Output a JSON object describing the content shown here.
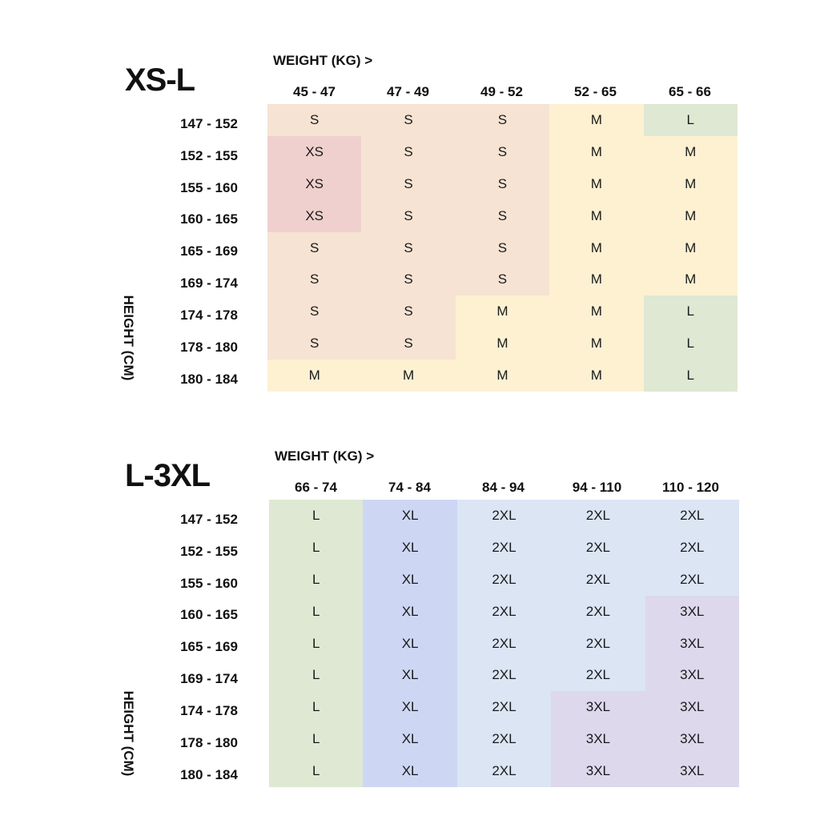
{
  "charts": [
    {
      "title": "XS-L",
      "weight_label": "WEIGHT (KG) >",
      "height_label": "HEIGHT (CM)",
      "weights": [
        "45 - 47",
        "47 - 49",
        "49 - 52",
        "52 - 65",
        "65 - 66"
      ],
      "heights": [
        "147 - 152",
        "152 - 155",
        "155 - 160",
        "160 - 165",
        "165 - 169",
        "169 - 174",
        "174 - 178",
        "178 - 180",
        "180 - 184"
      ],
      "sizes": [
        [
          "S",
          "S",
          "S",
          "M",
          "L"
        ],
        [
          "XS",
          "S",
          "S",
          "M",
          "M"
        ],
        [
          "XS",
          "S",
          "S",
          "M",
          "M"
        ],
        [
          "XS",
          "S",
          "S",
          "M",
          "M"
        ],
        [
          "S",
          "S",
          "S",
          "M",
          "M"
        ],
        [
          "S",
          "S",
          "S",
          "M",
          "M"
        ],
        [
          "S",
          "S",
          "M",
          "M",
          "L"
        ],
        [
          "S",
          "S",
          "M",
          "M",
          "L"
        ],
        [
          "M",
          "M",
          "M",
          "M",
          "L"
        ]
      ]
    },
    {
      "title": "L-3XL",
      "weight_label": "WEIGHT (KG) >",
      "height_label": "HEIGHT (CM)",
      "weights": [
        "66 - 74",
        "74 - 84",
        "84 - 94",
        "94 - 110",
        "110 - 120"
      ],
      "heights": [
        "147 - 152",
        "152 - 155",
        "155 - 160",
        "160 - 165",
        "165 - 169",
        "169 - 174",
        "174 - 178",
        "178 - 180",
        "180 - 184"
      ],
      "sizes": [
        [
          "L",
          "XL",
          "2XL",
          "2XL",
          "2XL"
        ],
        [
          "L",
          "XL",
          "2XL",
          "2XL",
          "2XL"
        ],
        [
          "L",
          "XL",
          "2XL",
          "2XL",
          "2XL"
        ],
        [
          "L",
          "XL",
          "2XL",
          "2XL",
          "3XL"
        ],
        [
          "L",
          "XL",
          "2XL",
          "2XL",
          "3XL"
        ],
        [
          "L",
          "XL",
          "2XL",
          "2XL",
          "3XL"
        ],
        [
          "L",
          "XL",
          "2XL",
          "3XL",
          "3XL"
        ],
        [
          "L",
          "XL",
          "2XL",
          "3XL",
          "3XL"
        ],
        [
          "L",
          "XL",
          "2XL",
          "3XL",
          "3XL"
        ]
      ]
    }
  ],
  "size_colors": {
    "XS": "#efd0cf",
    "S": "#f6e3d3",
    "M": "#fdf1d2",
    "L": "#dfe8d3",
    "XL": "#cdd7f3",
    "2XL": "#dbe5f4",
    "3XL": "#ddd8ec"
  }
}
